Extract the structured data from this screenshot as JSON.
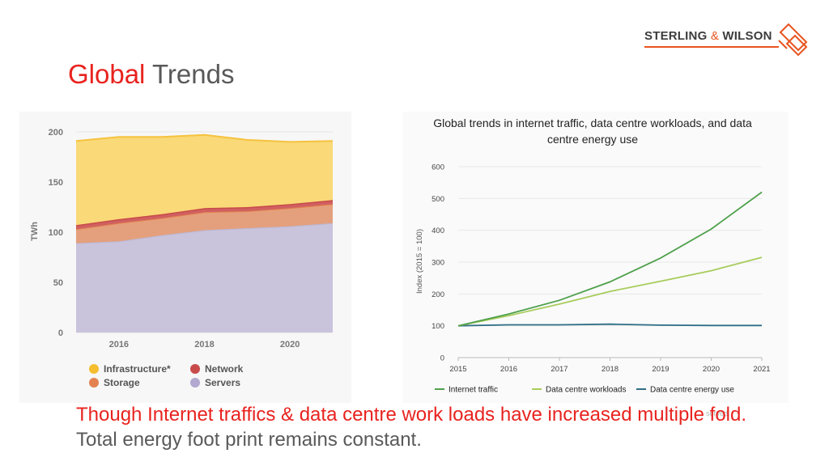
{
  "slide": {
    "title_part1": "Global",
    "title_part2": "Trends",
    "caption_red": "Though Internet traffics & data centre work loads have increased  multiple fold.",
    "caption_gray": "Total energy foot print  remains constant.",
    "footer_note": "served."
  },
  "logo": {
    "word1": "STERLING",
    "amp": "&",
    "word2": "WILSON",
    "brand_color": "#e8541f"
  },
  "colors": {
    "title_red": "#e8231f",
    "text_gray": "#595959"
  },
  "chart_data": [
    {
      "type": "area",
      "stacked": true,
      "title": "",
      "xlabel": "",
      "ylabel": "TWh",
      "x": [
        2015,
        2016,
        2017,
        2018,
        2019,
        2020,
        2021
      ],
      "xticks": [
        "2016",
        "2018",
        "2020"
      ],
      "yticks": [
        "0",
        "50",
        "100",
        "150",
        "200"
      ],
      "ylim": [
        0,
        200
      ],
      "series": [
        {
          "name": "Servers",
          "color": "#c9c3dc",
          "line": "#bdb6d3",
          "values": [
            89,
            91,
            97,
            102,
            104,
            106,
            109
          ]
        },
        {
          "name": "Storage",
          "color": "#e4a07c",
          "line": "#e38250",
          "values": [
            14,
            18,
            17,
            18,
            17,
            18,
            19
          ]
        },
        {
          "name": "Network",
          "color": "#d06060",
          "line": "#c84a4a",
          "values": [
            4,
            4,
            4,
            4,
            4,
            4,
            4
          ]
        },
        {
          "name": "Infrastructure*",
          "color": "#f9d978",
          "line": "#f6c23e",
          "values": [
            84,
            82,
            77,
            73,
            67,
            62,
            59
          ]
        }
      ],
      "legend": [
        {
          "label": "Infrastructure*",
          "color": "#f5be2e"
        },
        {
          "label": "Network",
          "color": "#c84a4a"
        },
        {
          "label": "Storage",
          "color": "#e38250"
        },
        {
          "label": "Servers",
          "color": "#b3a8cf"
        }
      ],
      "legend_position": "bottom",
      "grid": true
    },
    {
      "type": "line",
      "title": "Global trends in internet traffic, data centre workloads, and data centre energy use",
      "xlabel": "",
      "ylabel": "Index (2015 = 100)",
      "x": [
        2015,
        2016,
        2017,
        2018,
        2019,
        2020,
        2021
      ],
      "xticks": [
        "2015",
        "2016",
        "2017",
        "2018",
        "2019",
        "2020",
        "2021"
      ],
      "yticks": [
        "0",
        "100",
        "200",
        "300",
        "400",
        "500",
        "600"
      ],
      "ylim": [
        0,
        600
      ],
      "series": [
        {
          "name": "Internet traffic",
          "color": "#4fa04c",
          "values": [
            100,
            137,
            180,
            238,
            313,
            404,
            520
          ]
        },
        {
          "name": "Data centre workloads",
          "color": "#a8cc5c",
          "values": [
            100,
            132,
            168,
            208,
            240,
            273,
            315
          ]
        },
        {
          "name": "Data centre energy use",
          "color": "#2f6f87",
          "values": [
            100,
            103,
            103,
            105,
            102,
            101,
            101
          ]
        }
      ],
      "legend_position": "bottom",
      "grid": true
    }
  ]
}
